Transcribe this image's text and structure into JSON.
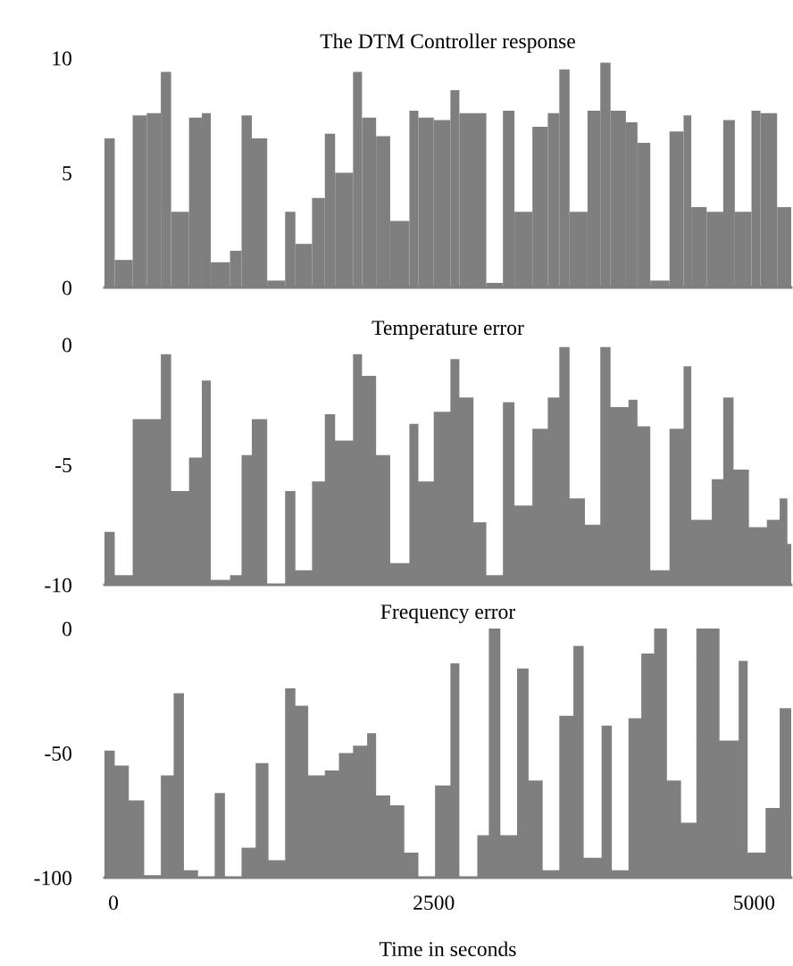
{
  "chart_data": [
    {
      "type": "histogram",
      "title": "The DTM Controller response",
      "color": "#7f7f7f",
      "bins": [
        -70,
        10,
        150,
        260,
        370,
        450,
        590,
        690,
        760,
        910,
        1000,
        1080,
        1200,
        1340,
        1420,
        1550,
        1650,
        1730,
        1870,
        1940,
        2050,
        2160,
        2310,
        2380,
        2500,
        2630,
        2700,
        2910,
        3040,
        3130,
        3270,
        3390,
        3480,
        3560,
        3700,
        3800,
        3880,
        4000,
        4090,
        4190,
        4340,
        4450,
        4510,
        4630,
        4760,
        4850,
        4980,
        5050,
        5180,
        5290
      ],
      "values": [
        6.5,
        1.2,
        7.5,
        7.6,
        9.4,
        3.3,
        7.4,
        7.6,
        1.1,
        1.6,
        7.5,
        6.5,
        0.3,
        3.3,
        1.9,
        3.9,
        6.7,
        5.0,
        9.4,
        7.4,
        6.6,
        2.9,
        7.7,
        7.4,
        7.3,
        8.6,
        7.6,
        0.2,
        7.7,
        3.3,
        7.0,
        7.6,
        9.5,
        3.3,
        7.7,
        9.8,
        7.7,
        7.2,
        6.3,
        0.3,
        6.8,
        7.5,
        3.5,
        3.3,
        7.3,
        3.3,
        7.7,
        7.6,
        3.5
      ],
      "xlim": [
        -70,
        5290
      ],
      "ylim": [
        0,
        10
      ],
      "yticks": [
        0,
        5,
        10
      ],
      "tick_labels": "y",
      "grid": false,
      "legend": false
    },
    {
      "type": "area",
      "title": "Temperature error",
      "color": "#7f7f7f",
      "x": [
        -70,
        -70,
        10,
        10,
        150,
        150,
        370,
        370,
        450,
        450,
        590,
        590,
        690,
        690,
        760,
        760,
        910,
        910,
        1000,
        1000,
        1080,
        1080,
        1200,
        1200,
        1340,
        1340,
        1420,
        1420,
        1550,
        1550,
        1650,
        1650,
        1730,
        1730,
        1870,
        1870,
        1940,
        1940,
        2050,
        2050,
        2160,
        2160,
        2310,
        2310,
        2380,
        2380,
        2500,
        2500,
        2630,
        2630,
        2700,
        2700,
        2810,
        2810,
        2910,
        2910,
        3040,
        3040,
        3130,
        3130,
        3270,
        3270,
        3390,
        3390,
        3480,
        3480,
        3560,
        3560,
        3680,
        3680,
        3800,
        3800,
        3880,
        3880,
        4020,
        4020,
        4090,
        4090,
        4190,
        4190,
        4340,
        4340,
        4450,
        4450,
        4510,
        4510,
        4670,
        4670,
        4760,
        4760,
        4840,
        4840,
        4960,
        4960,
        5100,
        5100,
        5200,
        5200,
        5260,
        5260,
        5290,
        5290
      ],
      "values": [
        -10,
        -7.8,
        -7.8,
        -9.6,
        -9.6,
        -3.1,
        -3.1,
        -0.4,
        -0.4,
        -6.1,
        -6.1,
        -4.7,
        -4.7,
        -1.5,
        -1.5,
        -9.8,
        -9.8,
        -9.6,
        -9.6,
        -4.6,
        -4.6,
        -3.1,
        -3.1,
        -10,
        -10,
        -6.1,
        -6.1,
        -9.4,
        -9.4,
        -5.7,
        -5.7,
        -2.9,
        -2.9,
        -4.0,
        -4.0,
        -0.4,
        -0.4,
        -1.3,
        -1.3,
        -4.6,
        -4.6,
        -9.1,
        -9.1,
        -3.3,
        -3.3,
        -5.7,
        -5.7,
        -2.8,
        -2.8,
        -0.6,
        -0.6,
        -2.2,
        -2.2,
        -7.4,
        -7.4,
        -9.6,
        -9.6,
        -2.4,
        -2.4,
        -6.7,
        -6.7,
        -3.5,
        -3.5,
        -2.2,
        -2.2,
        -0.1,
        -0.1,
        -6.4,
        -6.4,
        -7.5,
        -7.5,
        -0.1,
        -0.1,
        -2.6,
        -2.6,
        -2.3,
        -2.3,
        -3.4,
        -3.4,
        -9.4,
        -9.4,
        -3.5,
        -3.5,
        -0.9,
        -0.9,
        -7.3,
        -7.3,
        -5.6,
        -5.6,
        -2.2,
        -2.2,
        -5.2,
        -5.2,
        -7.6,
        -7.6,
        -7.3,
        -7.3,
        -6.4,
        -6.4,
        -8.3,
        -8.3,
        -10
      ],
      "xlim": [
        -70,
        5290
      ],
      "ylim": [
        -10,
        0
      ],
      "yticks": [
        0,
        -5,
        -10
      ],
      "tick_labels": "y",
      "grid": false,
      "legend": false
    },
    {
      "type": "area",
      "title": "Frequency error",
      "xlabel": "Time in seconds",
      "color": "#7f7f7f",
      "x": [
        -70,
        -70,
        10,
        10,
        120,
        120,
        240,
        240,
        370,
        370,
        470,
        470,
        550,
        550,
        660,
        660,
        790,
        790,
        870,
        870,
        1000,
        1000,
        1110,
        1110,
        1210,
        1210,
        1340,
        1340,
        1420,
        1420,
        1520,
        1520,
        1650,
        1650,
        1760,
        1760,
        1870,
        1870,
        1980,
        1980,
        2050,
        2050,
        2160,
        2160,
        2270,
        2270,
        2380,
        2380,
        2510,
        2510,
        2630,
        2630,
        2700,
        2700,
        2840,
        2840,
        2930,
        2930,
        3020,
        3020,
        3150,
        3150,
        3240,
        3240,
        3350,
        3350,
        3480,
        3480,
        3590,
        3590,
        3670,
        3670,
        3810,
        3810,
        3890,
        3890,
        4020,
        4020,
        4120,
        4120,
        4220,
        4220,
        4320,
        4320,
        4430,
        4430,
        4550,
        4550,
        4730,
        4730,
        4880,
        4880,
        4950,
        4950,
        5090,
        5090,
        5200,
        5200,
        5290,
        5290
      ],
      "values": [
        -100,
        -49,
        -49,
        -55,
        -55,
        -69,
        -69,
        -99,
        -99,
        -59,
        -59,
        -26,
        -26,
        -97,
        -97,
        -100,
        -100,
        -66,
        -66,
        -100,
        -100,
        -88,
        -88,
        -54,
        -54,
        -93,
        -93,
        -24,
        -24,
        -31,
        -31,
        -59,
        -59,
        -57,
        -57,
        -50,
        -50,
        -47,
        -47,
        -42,
        -42,
        -67,
        -67,
        -71,
        -71,
        -90,
        -90,
        -100,
        -100,
        -63,
        -63,
        -14,
        -14,
        -100,
        -100,
        -83,
        -83,
        0,
        0,
        -83,
        -83,
        -16,
        -16,
        -61,
        -61,
        -97,
        -97,
        -35,
        -35,
        -7,
        -7,
        -92,
        -92,
        -39,
        -39,
        -97,
        -97,
        -36,
        -36,
        -10,
        -10,
        0,
        0,
        -61,
        -61,
        -78,
        -78,
        0,
        0,
        -45,
        -45,
        -13,
        -13,
        -90,
        -90,
        -72,
        -72,
        -32,
        -32,
        -100
      ],
      "xlim": [
        -70,
        5290
      ],
      "ylim": [
        -100,
        0
      ],
      "xticks": [
        0,
        2500,
        5000
      ],
      "yticks": [
        0,
        -50,
        -100
      ],
      "grid": false,
      "legend": false
    }
  ]
}
